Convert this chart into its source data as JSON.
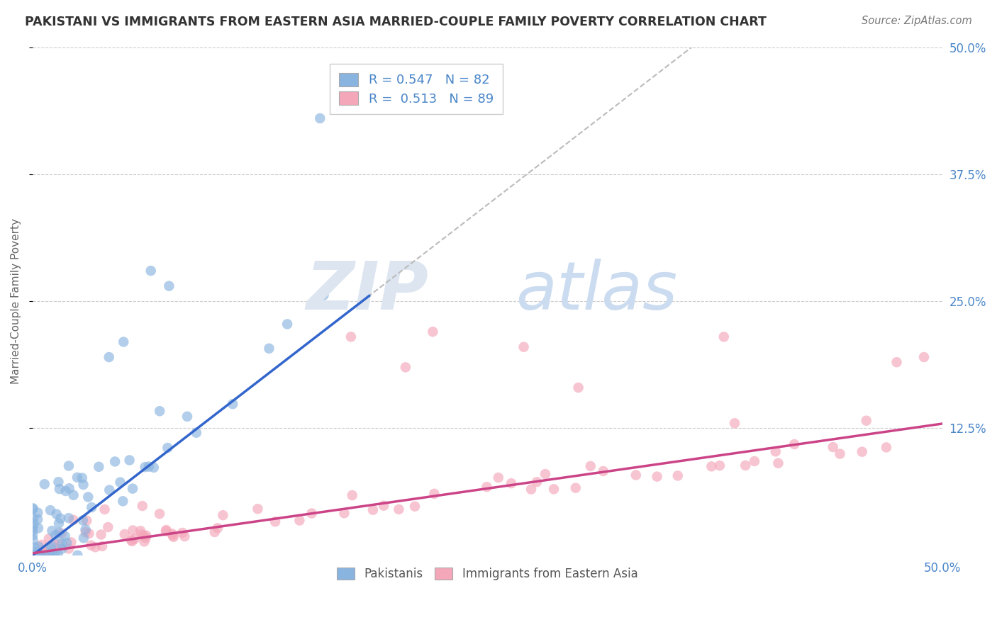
{
  "title": "PAKISTANI VS IMMIGRANTS FROM EASTERN ASIA MARRIED-COUPLE FAMILY POVERTY CORRELATION CHART",
  "source": "Source: ZipAtlas.com",
  "ylabel": "Married-Couple Family Poverty",
  "ylabel_right_labels": [
    "50.0%",
    "37.5%",
    "25.0%",
    "12.5%"
  ],
  "ylabel_right_values": [
    0.5,
    0.375,
    0.25,
    0.125
  ],
  "xrange": [
    0.0,
    0.5
  ],
  "yrange": [
    0.0,
    0.5
  ],
  "pakistani_R": 0.547,
  "pakistani_N": 82,
  "eastern_asia_R": 0.513,
  "eastern_asia_N": 89,
  "blue_color": "#8ab4e0",
  "pink_color": "#f4a7b9",
  "blue_line_color": "#3366cc",
  "pink_line_color": "#cc4488",
  "background_color": "#ffffff",
  "grid_color": "#cccccc",
  "watermark_zip_color": "#d0d8e8",
  "watermark_atlas_color": "#c8d8f0"
}
